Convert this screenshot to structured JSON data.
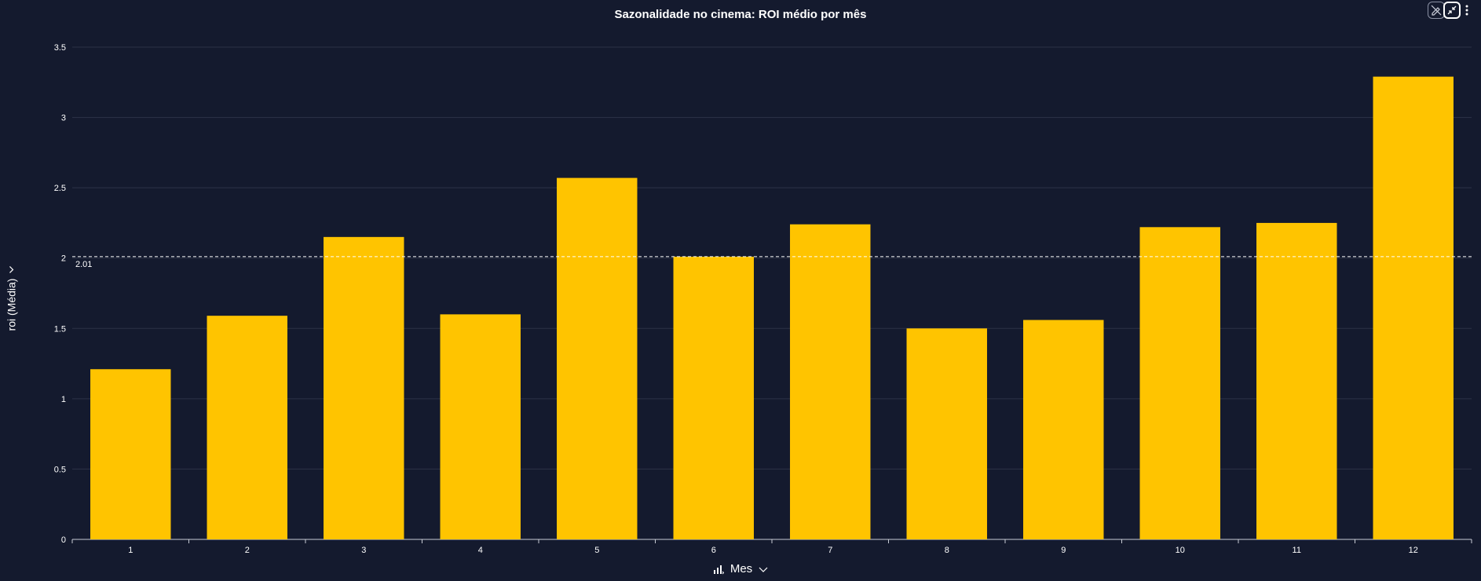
{
  "chart_data": {
    "type": "bar",
    "title": "Sazonalidade no cinema: ROI médio por mês",
    "xlabel": "Mes",
    "ylabel": "roi (Média)",
    "categories": [
      "1",
      "2",
      "3",
      "4",
      "5",
      "6",
      "7",
      "8",
      "9",
      "10",
      "11",
      "12"
    ],
    "values": [
      1.21,
      1.59,
      2.15,
      1.6,
      2.57,
      2.01,
      2.24,
      1.5,
      1.56,
      2.22,
      2.25,
      3.29
    ],
    "ylim": [
      0,
      3.5
    ],
    "yticks": [
      "0",
      "0.5",
      "1",
      "1.5",
      "2",
      "2.5",
      "3",
      "3.5"
    ],
    "reference_line": {
      "value": 2.01,
      "label": "2.01"
    },
    "grid": true,
    "colors": {
      "bar": "#ffc400",
      "background": "#141a2e",
      "grid": "#2c3347"
    }
  },
  "toolbar": {
    "edit_icon": "pencil-slash-icon",
    "collapse_icon": "collapse-arrows-icon",
    "more_icon": "more-vertical-icon"
  },
  "axis_icons": {
    "y_dropdown_icon": "chevron-down-icon",
    "x_sort_icon": "sort-bars-icon",
    "x_dropdown_icon": "chevron-down-icon"
  }
}
